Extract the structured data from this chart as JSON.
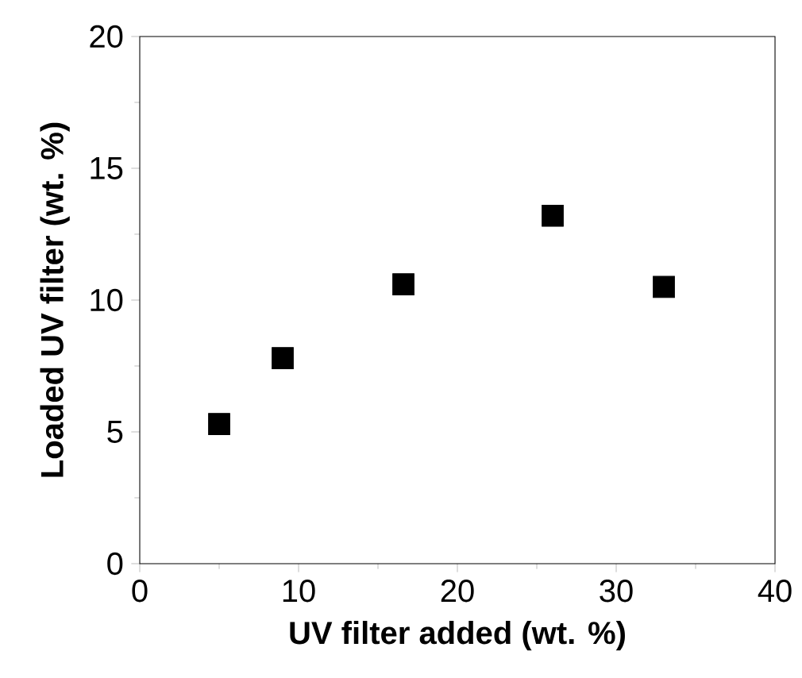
{
  "chart_data": {
    "type": "scatter",
    "xlabel": "UV filter added (wt. %)",
    "ylabel": "Loaded UV filter (wt. %)",
    "x": [
      5,
      9,
      16.6,
      26,
      33
    ],
    "values": [
      5.3,
      7.8,
      10.6,
      13.2,
      10.5
    ],
    "color": "#000000",
    "marker": "square",
    "xlim": [
      0,
      40
    ],
    "ylim": [
      0,
      20
    ],
    "xticks": [
      0,
      10,
      20,
      30,
      40
    ],
    "yticks": [
      0,
      5,
      10,
      15,
      20
    ],
    "grid": false
  }
}
